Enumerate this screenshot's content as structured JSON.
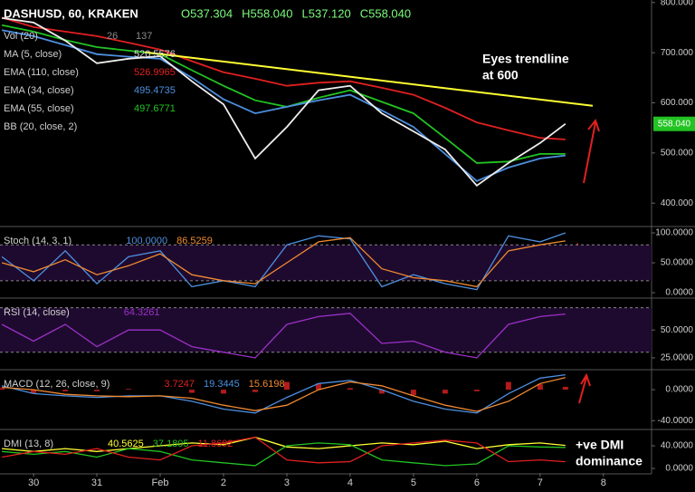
{
  "chart_data": {
    "type": "multi-panel",
    "header": {
      "symbol": "DASHUSD, 60, KRAKEN",
      "ohlc": [
        "O537.304",
        "H558.040",
        "L537.120",
        "C558.040"
      ]
    },
    "xlim": [
      -0.53,
      9.76
    ],
    "xticks": [
      {
        "value": 0,
        "label": "30"
      },
      {
        "value": 1,
        "label": "31"
      },
      {
        "value": 2,
        "label": "Feb"
      },
      {
        "value": 3,
        "label": "2"
      },
      {
        "value": 4,
        "label": "3"
      },
      {
        "value": 5,
        "label": "4"
      },
      {
        "value": 6,
        "label": "5"
      },
      {
        "value": 7,
        "label": "6"
      },
      {
        "value": 8,
        "label": "7"
      },
      {
        "value": 9,
        "label": "8"
      }
    ],
    "x": [
      -0.5,
      0,
      0.5,
      1,
      1.5,
      2,
      2.5,
      3,
      3.5,
      4,
      4.5,
      5,
      5.5,
      6,
      6.5,
      7,
      7.5,
      8,
      8.4
    ],
    "panels": [
      {
        "type": "line",
        "ylim": [
          357,
          805
        ],
        "yticks": [
          {
            "value": 800,
            "label": "800.000"
          },
          {
            "value": 700,
            "label": "700.000"
          },
          {
            "value": 600,
            "label": "600.000"
          },
          {
            "value": 500,
            "label": "500.000"
          },
          {
            "value": 400,
            "label": "400.000"
          }
        ],
        "last_price": {
          "value": 558.04,
          "label": "558.040"
        },
        "legend": [
          {
            "name": "Vol (20)",
            "labels": [
              "26",
              "137"
            ],
            "color": "#8a8a8a"
          },
          {
            "name": "MA (5, close)",
            "labels": [
              "520.5576"
            ],
            "color": "#dddddd"
          },
          {
            "name": "EMA (110, close)",
            "labels": [
              "526.9965"
            ],
            "color": "#e02020"
          },
          {
            "name": "EMA (34, close)",
            "labels": [
              "495.4735"
            ],
            "color": "#4d8fe0"
          },
          {
            "name": "EMA (55, close)",
            "labels": [
              "497.6771"
            ],
            "color": "#22c322"
          },
          {
            "name": "BB (20, close, 2)",
            "labels": [],
            "color": "#4d8fe0"
          }
        ],
        "series": [
          {
            "color": "#e02020",
            "values": [
              770,
              751,
              742,
              733,
              720,
              706,
              683,
              661,
              648,
              634,
              640,
              643,
              630,
              616,
              590,
              561,
              545,
              530,
              527
            ]
          },
          {
            "color": "#22c322",
            "values": [
              755,
              742,
              725,
              711,
              704,
              697,
              665,
              634,
              605,
              592,
              610,
              625,
              602,
              579,
              530,
              480,
              483,
              498,
              498
            ]
          },
          {
            "color": "#4d8fe0",
            "values": [
              745,
              733,
              715,
              697,
              692,
              688,
              650,
              607,
              579,
              592,
              605,
              616,
              585,
              552,
              498,
              444,
              471,
              489,
              495
            ]
          },
          {
            "color": "#eeeeee",
            "values": [
              769,
              760,
              724,
              679,
              688,
              693,
              643,
              597,
              489,
              552,
              625,
              634,
              579,
              543,
              507,
              435,
              480,
              520,
              558
            ]
          }
        ],
        "trendline": {
          "x": [
            1.76,
            8.83
          ],
          "values": [
            701,
            594
          ],
          "color": "#ffff33"
        },
        "annotations": [
          "Eyes trendline",
          "at 600"
        ]
      },
      {
        "type": "line",
        "title": "Stoch (14, 3, 1)",
        "ylim": [
          -6,
          107.6
        ],
        "band": [
          20,
          80
        ],
        "yticks": [
          {
            "value": 100,
            "label": "100.0000"
          },
          {
            "value": 50,
            "label": "50.0000"
          },
          {
            "value": 0,
            "label": "0.0000"
          }
        ],
        "series": [
          {
            "color": "#4d8fe0",
            "value_label": "100.0000",
            "values": [
              60,
              20,
              70,
              15,
              60,
              70,
              10,
              20,
              10,
              80,
              95,
              90,
              10,
              30,
              15,
              5,
              95,
              85,
              100
            ]
          },
          {
            "color": "#f08a30",
            "value_label": "86.5259",
            "values": [
              50,
              35,
              55,
              30,
              45,
              65,
              30,
              20,
              15,
              50,
              85,
              92,
              40,
              25,
              20,
              10,
              70,
              80,
              86.5
            ]
          }
        ]
      },
      {
        "type": "line",
        "title": "RSI (14, close)",
        "ylim": [
          16,
          77
        ],
        "band": [
          30,
          70
        ],
        "yticks": [
          {
            "value": 50,
            "label": "50.0000"
          },
          {
            "value": 25,
            "label": "25.0000"
          }
        ],
        "series": [
          {
            "color": "#9b30c8",
            "value_label": "64.3261",
            "values": [
              55,
              40,
              55,
              35,
              50,
              50,
              35,
              30,
              25,
              55,
              62,
              65,
              38,
              40,
              30,
              25,
              55,
              62,
              64.3
            ]
          }
        ]
      },
      {
        "type": "line",
        "title": "MACD (12, 26, close, 9)",
        "ylim": [
          -49,
          23.5
        ],
        "yticks": [
          {
            "value": 0,
            "label": "0.0000"
          },
          {
            "value": -40,
            "label": "-40.0000"
          }
        ],
        "series": [
          {
            "color": "#e02020",
            "style": "bar",
            "value_label": "3.7247",
            "values": [
              2,
              -5,
              -2,
              -2,
              1,
              0,
              -4,
              -5,
              -3,
              10,
              8,
              2,
              -5,
              -7,
              -5,
              -2,
              10,
              7,
              3.7
            ]
          },
          {
            "color": "#4d8fe0",
            "value_label": "19.3445",
            "values": [
              5,
              -5,
              -8,
              -10,
              -8,
              -8,
              -15,
              -25,
              -30,
              -10,
              8,
              12,
              0,
              -15,
              -25,
              -30,
              -5,
              15,
              19.3
            ]
          },
          {
            "color": "#f08a30",
            "value_label": "15.6198",
            "values": [
              3,
              0,
              -6,
              -8,
              -9,
              -8,
              -11,
              -20,
              -27,
              -20,
              0,
              10,
              5,
              -8,
              -20,
              -28,
              -15,
              8,
              15.6
            ]
          }
        ]
      },
      {
        "type": "line",
        "title": "DMI (13, 8)",
        "ylim": [
          -8,
          65.6
        ],
        "yticks": [
          {
            "value": 40,
            "label": "40.0000"
          },
          {
            "value": 0,
            "label": "0.0000"
          }
        ],
        "series": [
          {
            "color": "#ffff33",
            "value_label": "40.5625",
            "values": [
              35,
              30,
              35,
              30,
              35,
              40,
              45,
              42,
              55,
              38,
              35,
              40,
              45,
              42,
              48,
              35,
              42,
              45,
              40.56
            ]
          },
          {
            "color": "#22c322",
            "value_label": "37.1805",
            "values": [
              30,
              25,
              30,
              20,
              35,
              30,
              15,
              10,
              5,
              40,
              45,
              42,
              15,
              10,
              5,
              8,
              40,
              38,
              37.2
            ]
          },
          {
            "color": "#e02020",
            "value_label": "11.8692",
            "values": [
              20,
              30,
              25,
              35,
              20,
              15,
              40,
              45,
              55,
              15,
              10,
              12,
              40,
              45,
              50,
              45,
              12,
              15,
              11.9
            ]
          }
        ],
        "annotations": [
          "+ve DMI",
          "dominance"
        ]
      }
    ]
  }
}
